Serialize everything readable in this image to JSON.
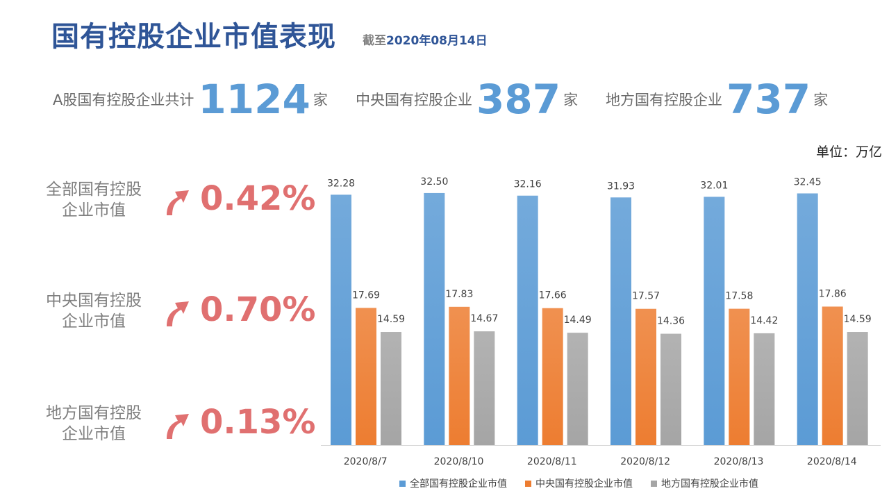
{
  "title": "国有控股企业市值表现",
  "subtitle": {
    "prefix": "截至",
    "date": "2020年08月14日"
  },
  "stats": [
    {
      "label": "A股国有控股企业共计",
      "value": "1124",
      "unit": "家"
    },
    {
      "label": "中央国有控股企业",
      "value": "387",
      "unit": "家"
    },
    {
      "label": "地方国有控股企业",
      "value": "737",
      "unit": "家"
    }
  ],
  "unit_label": "单位：万亿",
  "growth": [
    {
      "name_line1": "全部国有控股",
      "name_line2": "企业市值",
      "pct": "0.42%",
      "icon": "up-arrow-icon"
    },
    {
      "name_line1": "中央国有控股",
      "name_line2": "企业市值",
      "pct": "0.70%",
      "icon": "up-arrow-icon"
    },
    {
      "name_line1": "地方国有控股",
      "name_line2": "企业市值",
      "pct": "0.13%",
      "icon": "up-arrow-icon"
    }
  ],
  "colors": {
    "title": "#2f5597",
    "stat_number": "#5b9bd5",
    "growth_pct": "#e07070",
    "series_all": "#5b9bd5",
    "series_central": "#ed7d31",
    "series_local": "#a5a5a5"
  },
  "chart_data": {
    "type": "bar",
    "categories": [
      "2020/8/7",
      "2020/8/10",
      "2020/8/11",
      "2020/8/12",
      "2020/8/13",
      "2020/8/14"
    ],
    "series": [
      {
        "name": "全部国有控股企业市值",
        "values": [
          32.28,
          32.5,
          32.16,
          31.93,
          32.01,
          32.45
        ]
      },
      {
        "name": "中央国有控股企业市值",
        "values": [
          17.69,
          17.83,
          17.66,
          17.57,
          17.58,
          17.86
        ]
      },
      {
        "name": "地方国有控股企业市值",
        "values": [
          14.59,
          14.67,
          14.49,
          14.36,
          14.42,
          14.59
        ]
      }
    ],
    "ylim": [
      0,
      35
    ],
    "grid": false,
    "legend": "bottom",
    "data_labels": true
  }
}
